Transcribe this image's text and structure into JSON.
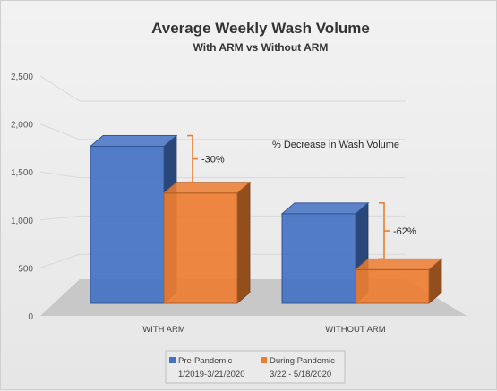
{
  "chart_data": {
    "type": "bar",
    "title": "Average Weekly Wash Volume",
    "subtitle": "With ARM vs Without ARM",
    "categories": [
      "WITH ARM",
      "WITHOUT ARM"
    ],
    "series": [
      {
        "name": "Pre-Pandemic",
        "name_line2": "1/2019-3/21/2020",
        "color": "#4472C4",
        "values": [
          2050,
          1170
        ]
      },
      {
        "name": "During Pandemic",
        "name_line2": "3/22 - 5/18/2020",
        "color": "#ED7D31",
        "values": [
          1440,
          440
        ]
      }
    ],
    "ylim": [
      0,
      2500
    ],
    "yticks": [
      "0",
      "500",
      "1,000",
      "1,500",
      "2,000",
      "2,500"
    ],
    "ytick_values": [
      0,
      500,
      1000,
      1500,
      2000,
      2500
    ],
    "annotations": {
      "pct_label": "% Decrease in Wash Volume",
      "decreases": [
        "-30%",
        "-62%"
      ]
    },
    "legend_position": "bottom",
    "grid": true,
    "style": "3d"
  }
}
